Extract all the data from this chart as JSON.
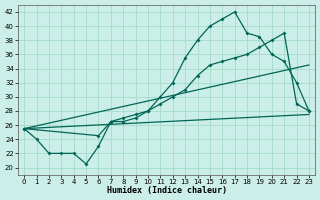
{
  "bg_color": "#cceee8",
  "grid_color": "#aaddcc",
  "line_color": "#006655",
  "xlabel": "Humidex (Indice chaleur)",
  "xlim": [
    -0.5,
    23.5
  ],
  "ylim": [
    19,
    43
  ],
  "xticks": [
    0,
    1,
    2,
    3,
    4,
    5,
    6,
    7,
    8,
    9,
    10,
    11,
    12,
    13,
    14,
    15,
    16,
    17,
    18,
    19,
    20,
    21,
    22,
    23
  ],
  "yticks": [
    20,
    22,
    24,
    26,
    28,
    30,
    32,
    34,
    36,
    38,
    40,
    42
  ],
  "main_x": [
    0,
    1,
    2,
    3,
    4,
    5,
    6,
    7,
    8,
    9,
    10,
    11,
    12,
    13,
    14,
    15,
    16,
    17,
    18,
    19,
    20,
    21,
    22,
    23
  ],
  "main_y": [
    25.5,
    24,
    22,
    22,
    22,
    20.5,
    23,
    26.5,
    26.5,
    27,
    28,
    30,
    32,
    35.5,
    38,
    40,
    41,
    42,
    39,
    38.5,
    36,
    35,
    32,
    28
  ],
  "line2_x": [
    0,
    6,
    7,
    8,
    9,
    10,
    11,
    12,
    13,
    14,
    15,
    16,
    17,
    18,
    19,
    20,
    21,
    22,
    23
  ],
  "line2_y": [
    25.5,
    24.5,
    26.5,
    27,
    27.5,
    28,
    29,
    30,
    31,
    33,
    34.5,
    35,
    35.5,
    36,
    37,
    38,
    39,
    29,
    28
  ],
  "line3_x": [
    0,
    23
  ],
  "line3_y": [
    25.5,
    34.5
  ],
  "line4_x": [
    0,
    23
  ],
  "line4_y": [
    25.5,
    27.5
  ]
}
